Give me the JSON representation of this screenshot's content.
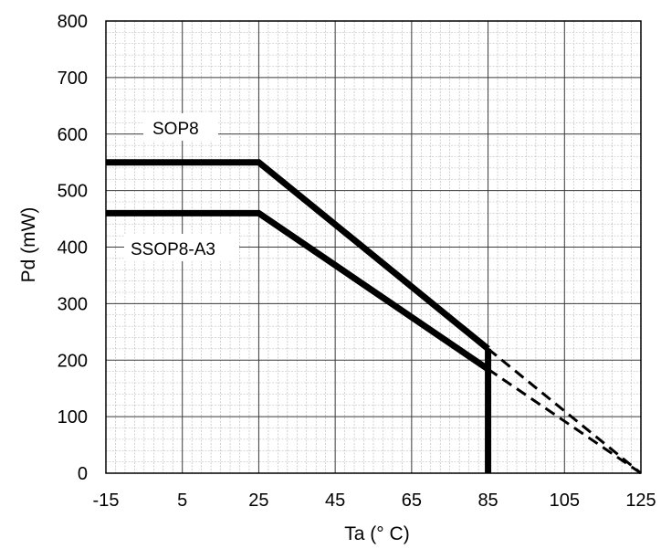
{
  "chart_data": {
    "type": "line",
    "title": "",
    "xlabel": "Ta (° C)",
    "ylabel": "Pd (mW)",
    "xlim": [
      -15,
      125
    ],
    "ylim": [
      0,
      800
    ],
    "x_ticks": [
      -15,
      5,
      25,
      45,
      65,
      85,
      105,
      125
    ],
    "y_ticks": [
      0,
      100,
      200,
      300,
      400,
      500,
      600,
      700,
      800
    ],
    "grid": true,
    "series": [
      {
        "name": "SOP8",
        "solid": [
          [
            -15,
            550
          ],
          [
            25,
            550
          ],
          [
            85,
            220
          ]
        ],
        "dashed": [
          [
            85,
            220
          ],
          [
            125,
            0
          ]
        ]
      },
      {
        "name": "SSOP8-A3",
        "solid": [
          [
            -15,
            460
          ],
          [
            25,
            460
          ],
          [
            85,
            184
          ]
        ],
        "dashed": [
          [
            85,
            184
          ],
          [
            125,
            0
          ]
        ]
      }
    ],
    "vertical_line": {
      "x": 85,
      "y_from": 0,
      "y_to": 220
    }
  }
}
